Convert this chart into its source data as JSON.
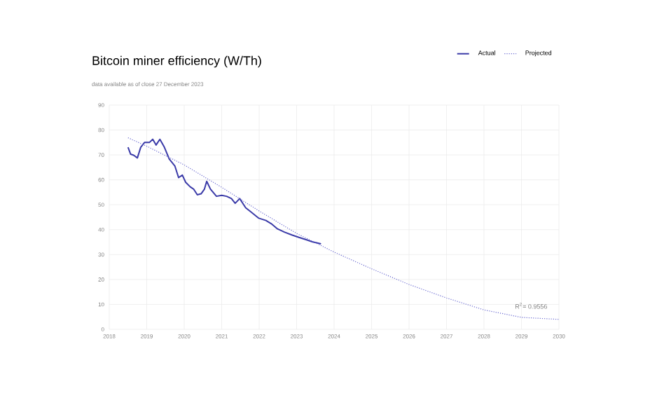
{
  "chart_data": {
    "type": "line",
    "title": "Bitcoin miner efficiency (W/Th)",
    "subtitle": "data available as of close 27 December 2023",
    "series": [
      {
        "name": "Actual",
        "color": "#3a3aa8",
        "line_style": "solid",
        "x": [
          2018.5,
          2018.57,
          2018.65,
          2018.75,
          2018.84,
          2018.94,
          2019.07,
          2019.16,
          2019.25,
          2019.35,
          2019.47,
          2019.6,
          2019.75,
          2019.85,
          2019.95,
          2020.04,
          2020.16,
          2020.25,
          2020.35,
          2020.45,
          2020.54,
          2020.6,
          2020.7,
          2020.86,
          2021.0,
          2021.13,
          2021.26,
          2021.36,
          2021.48,
          2021.64,
          2021.8,
          2021.99,
          2022.18,
          2022.34,
          2022.49,
          2022.68,
          2022.87,
          2023.06,
          2023.25,
          2023.43,
          2023.65
        ],
        "values": [
          73.1,
          70.3,
          69.9,
          68.8,
          73.1,
          75,
          75,
          76.3,
          74,
          76.3,
          73.1,
          68.4,
          65.6,
          60.9,
          61.9,
          59,
          57.2,
          56.3,
          54,
          54.4,
          56.3,
          59.4,
          56.3,
          53.4,
          53.8,
          53.4,
          52.5,
          50.6,
          52.5,
          48.8,
          46.9,
          44.6,
          43.7,
          42.2,
          40.3,
          39,
          37.9,
          36.9,
          36,
          35.1,
          34.3
        ]
      },
      {
        "name": "Projected",
        "color": "#6a6ad0",
        "line_style": "dotted",
        "x": [
          2018.5,
          2019,
          2020,
          2021,
          2022,
          2023,
          2024,
          2025,
          2026,
          2027,
          2028,
          2029,
          2030
        ],
        "values": [
          76.9,
          73.5,
          66,
          57,
          47.5,
          38.5,
          31,
          24.3,
          18,
          12.6,
          7.8,
          4.8,
          4
        ]
      }
    ],
    "annotations": [
      "R$^{2}$= 0.9556"
    ],
    "xlim": [
      2018,
      2030
    ],
    "xticks": [
      2018,
      2019,
      2020,
      2021,
      2022,
      2023,
      2024,
      2025,
      2026,
      2027,
      2028,
      2029,
      2030
    ],
    "ylim": [
      0,
      90
    ],
    "yticks": [
      0,
      10,
      20,
      30,
      40,
      50,
      60,
      70,
      80,
      90
    ],
    "grid": true,
    "legend": "top right"
  }
}
